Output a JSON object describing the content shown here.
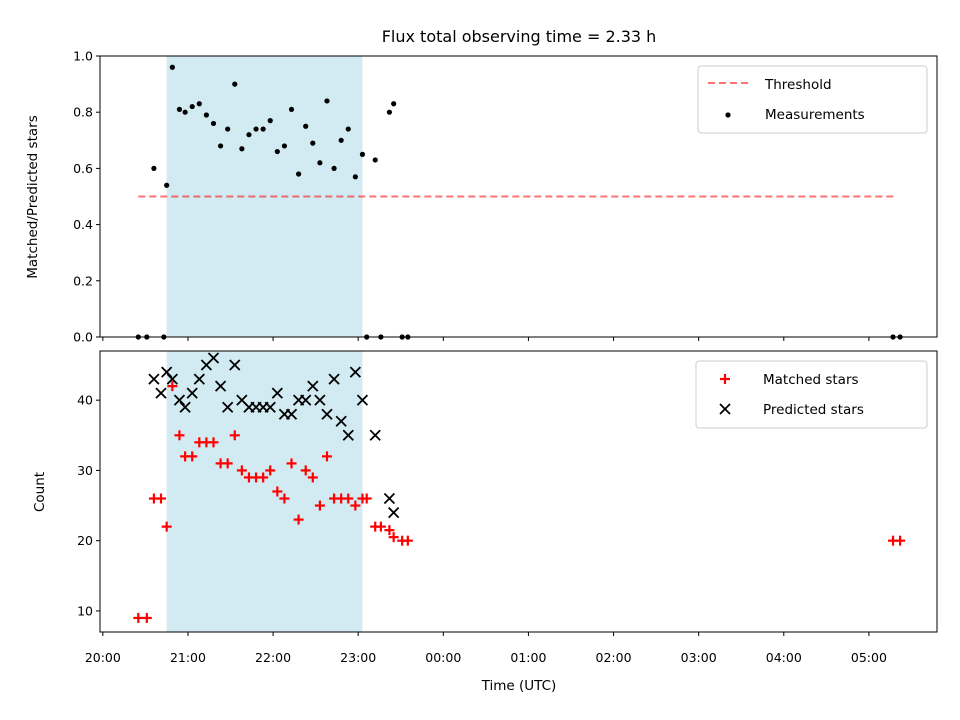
{
  "chart_data": {
    "title": "Flux total observing time = 2.33 h",
    "xlabel": "Time (UTC)",
    "xlim": [
      "19:58",
      "05:48"
    ],
    "x_ticks": [
      "20:00",
      "21:00",
      "22:00",
      "23:00",
      "00:00",
      "01:00",
      "02:00",
      "03:00",
      "04:00",
      "05:00"
    ],
    "shaded_interval": [
      "20:45",
      "23:03"
    ],
    "shade_color": "#add8e6",
    "panels": [
      {
        "type": "scatter",
        "ylabel": "Matched/Predicted stars",
        "ylim": [
          0,
          1
        ],
        "y_ticks": [
          "0.0",
          "0.2",
          "0.4",
          "0.6",
          "0.8",
          "1.0"
        ],
        "legend_position": "top-right",
        "threshold": {
          "name": "Threshold",
          "y": 0.5,
          "x_range": [
            "20:25",
            "05:20"
          ],
          "color": "#ff0000",
          "style": "dashed"
        },
        "series": [
          {
            "name": "Measurements",
            "color": "#000000",
            "marker": "dot",
            "x": [
              "20:25",
              "20:31",
              "20:36",
              "20:43",
              "20:45",
              "20:49",
              "20:54",
              "20:58",
              "21:03",
              "21:08",
              "21:13",
              "21:18",
              "21:23",
              "21:28",
              "21:33",
              "21:38",
              "21:43",
              "21:48",
              "21:53",
              "21:58",
              "22:03",
              "22:08",
              "22:13",
              "22:18",
              "22:23",
              "22:28",
              "22:33",
              "22:38",
              "22:43",
              "22:48",
              "22:53",
              "22:58",
              "23:03",
              "23:06",
              "23:12",
              "23:16",
              "23:22",
              "23:25",
              "23:31",
              "23:35",
              "05:17",
              "05:22"
            ],
            "y": [
              0,
              0,
              0.6,
              0,
              0.54,
              0.96,
              0.81,
              0.8,
              0.82,
              0.83,
              0.79,
              0.76,
              0.68,
              0.74,
              0.9,
              0.67,
              0.72,
              0.74,
              0.74,
              0.77,
              0.66,
              0.68,
              0.81,
              0.58,
              0.75,
              0.69,
              0.62,
              0.84,
              0.6,
              0.7,
              0.74,
              0.57,
              0.65,
              0,
              0.63,
              0,
              0.8,
              0.83,
              0,
              0,
              0,
              0
            ]
          }
        ]
      },
      {
        "type": "scatter",
        "ylabel": "Count",
        "ylim": [
          7,
          47
        ],
        "y_ticks": [
          "10",
          "20",
          "30",
          "40"
        ],
        "legend_position": "top-right",
        "series": [
          {
            "name": "Matched stars",
            "color": "#ff0000",
            "marker": "plus",
            "x": [
              "20:25",
              "20:31",
              "20:36",
              "20:41",
              "20:45",
              "20:49",
              "20:54",
              "20:58",
              "21:03",
              "21:08",
              "21:13",
              "21:18",
              "21:23",
              "21:28",
              "21:33",
              "21:38",
              "21:43",
              "21:48",
              "21:53",
              "21:58",
              "22:03",
              "22:08",
              "22:13",
              "22:18",
              "22:23",
              "22:28",
              "22:33",
              "22:38",
              "22:43",
              "22:48",
              "22:53",
              "22:58",
              "23:03",
              "23:06",
              "23:12",
              "23:16",
              "23:22",
              "23:25",
              "23:31",
              "23:35",
              "05:17",
              "05:22"
            ],
            "y": [
              9,
              9,
              26,
              26,
              22,
              42,
              35,
              32,
              32,
              34,
              34,
              34,
              31,
              31,
              35,
              30,
              29,
              29,
              29,
              30,
              27,
              26,
              31,
              23,
              30,
              29,
              25,
              32,
              26,
              26,
              26,
              25,
              26,
              26,
              22,
              22,
              21.5,
              20.5,
              20,
              20,
              20,
              20
            ]
          },
          {
            "name": "Predicted stars",
            "color": "#000000",
            "marker": "x",
            "x": [
              "20:36",
              "20:41",
              "20:45",
              "20:49",
              "20:54",
              "20:58",
              "21:03",
              "21:08",
              "21:13",
              "21:18",
              "21:23",
              "21:28",
              "21:33",
              "21:38",
              "21:43",
              "21:48",
              "21:53",
              "21:58",
              "22:03",
              "22:08",
              "22:13",
              "22:18",
              "22:23",
              "22:28",
              "22:33",
              "22:38",
              "22:43",
              "22:48",
              "22:53",
              "22:58",
              "23:03",
              "23:12",
              "23:22",
              "23:25"
            ],
            "y": [
              43,
              41,
              44,
              43,
              40,
              39,
              41,
              43,
              45,
              46,
              42,
              39,
              45,
              40,
              39,
              39,
              39,
              39,
              41,
              38,
              38,
              40,
              40,
              42,
              40,
              38,
              43,
              37,
              35,
              44,
              40,
              35,
              26,
              24
            ]
          }
        ]
      }
    ]
  }
}
